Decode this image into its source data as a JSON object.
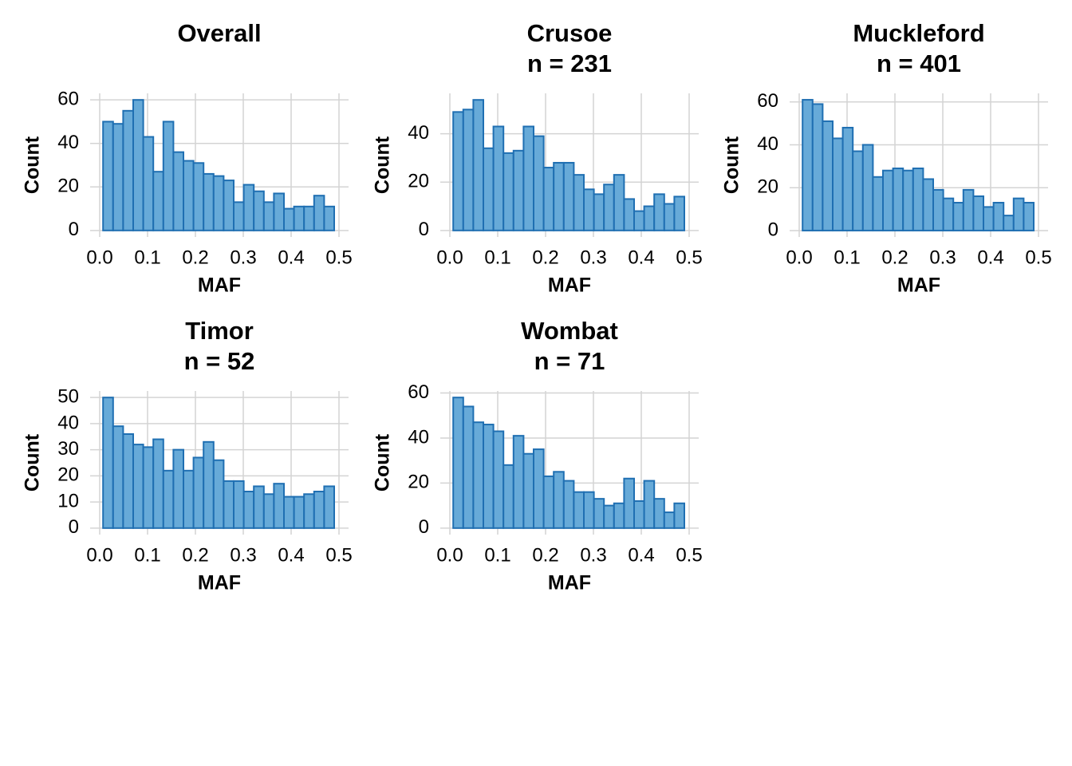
{
  "chart_data": [
    {
      "type": "histogram",
      "title": "Overall",
      "x_label": "MAF",
      "y_label": "Count",
      "bins": [
        0.007,
        0.028,
        0.049,
        0.07,
        0.091,
        0.112,
        0.133,
        0.154,
        0.175,
        0.196,
        0.217,
        0.238,
        0.259,
        0.28,
        0.301,
        0.322,
        0.343,
        0.364,
        0.385,
        0.406,
        0.427,
        0.448,
        0.469,
        0.49
      ],
      "values": [
        50,
        49,
        55,
        60,
        43,
        27,
        50,
        36,
        32,
        31,
        26,
        25,
        23,
        13,
        21,
        18,
        13,
        17,
        10,
        11,
        11,
        16,
        11
      ],
      "color": "#67aad8",
      "edge_color": "#1f6fb2",
      "grid": true,
      "xlim": [
        -0.02,
        0.52
      ],
      "xticks": [
        {
          "value": 0,
          "label": "0.0"
        },
        0.1,
        0.2,
        0.3,
        0.4,
        0.5
      ],
      "ylim": [
        -3,
        63
      ],
      "yticks": [
        0,
        20,
        40,
        60
      ]
    },
    {
      "type": "histogram",
      "title": "Crusoe",
      "subtitle": "n = 231",
      "x_label": "MAF",
      "y_label": "Count",
      "bins": [
        0.007,
        0.028,
        0.049,
        0.07,
        0.091,
        0.112,
        0.133,
        0.154,
        0.175,
        0.196,
        0.217,
        0.238,
        0.259,
        0.28,
        0.301,
        0.322,
        0.343,
        0.364,
        0.385,
        0.406,
        0.427,
        0.448,
        0.469,
        0.49
      ],
      "values": [
        49,
        50,
        54,
        34,
        43,
        32,
        33,
        43,
        39,
        26,
        28,
        28,
        23,
        17,
        15,
        19,
        23,
        13,
        8,
        10,
        15,
        11,
        14
      ],
      "color": "#67aad8",
      "edge_color": "#1f6fb2",
      "grid": true,
      "xlim": [
        -0.02,
        0.52
      ],
      "xticks": [
        {
          "value": 0,
          "label": "0.0"
        },
        0.1,
        0.2,
        0.3,
        0.4,
        0.5
      ],
      "ylim": [
        -2.7,
        56.7
      ],
      "yticks": [
        0,
        20,
        40
      ]
    },
    {
      "type": "histogram",
      "title": "Muckleford",
      "subtitle": "n = 401",
      "x_label": "MAF",
      "y_label": "Count",
      "bins": [
        0.007,
        0.028,
        0.049,
        0.07,
        0.091,
        0.112,
        0.133,
        0.154,
        0.175,
        0.196,
        0.217,
        0.238,
        0.259,
        0.28,
        0.301,
        0.322,
        0.343,
        0.364,
        0.385,
        0.406,
        0.427,
        0.448,
        0.469,
        0.49
      ],
      "values": [
        61,
        59,
        51,
        43,
        48,
        37,
        40,
        25,
        28,
        29,
        28,
        29,
        24,
        19,
        15,
        13,
        19,
        16,
        11,
        13,
        7,
        15,
        13
      ],
      "color": "#67aad8",
      "edge_color": "#1f6fb2",
      "grid": true,
      "xlim": [
        -0.02,
        0.52
      ],
      "xticks": [
        {
          "value": 0,
          "label": "0.0"
        },
        0.1,
        0.2,
        0.3,
        0.4,
        0.5
      ],
      "ylim": [
        -3,
        64
      ],
      "yticks": [
        0,
        20,
        40,
        60
      ]
    },
    {
      "type": "histogram",
      "title": "Timor",
      "subtitle": "n = 52",
      "x_label": "MAF",
      "y_label": "Count",
      "bins": [
        0.007,
        0.028,
        0.049,
        0.07,
        0.091,
        0.112,
        0.133,
        0.154,
        0.175,
        0.196,
        0.217,
        0.238,
        0.259,
        0.28,
        0.301,
        0.322,
        0.343,
        0.364,
        0.385,
        0.406,
        0.427,
        0.448,
        0.469,
        0.49
      ],
      "values": [
        50,
        39,
        36,
        32,
        31,
        34,
        22,
        30,
        22,
        27,
        33,
        26,
        18,
        18,
        14,
        16,
        13,
        17,
        12,
        12,
        13,
        14,
        16
      ],
      "color": "#67aad8",
      "edge_color": "#1f6fb2",
      "grid": true,
      "xlim": [
        -0.02,
        0.52
      ],
      "xticks": [
        {
          "value": 0,
          "label": "0.0"
        },
        0.1,
        0.2,
        0.3,
        0.4,
        0.5
      ],
      "ylim": [
        -2.5,
        52.5
      ],
      "yticks": [
        0,
        10,
        20,
        30,
        40,
        50
      ]
    },
    {
      "type": "histogram",
      "title": "Wombat",
      "subtitle": "n = 71",
      "x_label": "MAF",
      "y_label": "Count",
      "bins": [
        0.007,
        0.028,
        0.049,
        0.07,
        0.091,
        0.112,
        0.133,
        0.154,
        0.175,
        0.196,
        0.217,
        0.238,
        0.259,
        0.28,
        0.301,
        0.322,
        0.343,
        0.364,
        0.385,
        0.406,
        0.427,
        0.448,
        0.469,
        0.49
      ],
      "values": [
        58,
        54,
        47,
        46,
        43,
        28,
        41,
        33,
        35,
        23,
        25,
        21,
        16,
        16,
        13,
        10,
        11,
        22,
        12,
        21,
        13,
        7,
        11
      ],
      "color": "#67aad8",
      "edge_color": "#1f6fb2",
      "grid": true,
      "xlim": [
        -0.02,
        0.52
      ],
      "xticks": [
        {
          "value": 0,
          "label": "0.0"
        },
        0.1,
        0.2,
        0.3,
        0.4,
        0.5
      ],
      "ylim": [
        -2.9,
        60.9
      ],
      "yticks": [
        0,
        20,
        40,
        60
      ]
    }
  ]
}
